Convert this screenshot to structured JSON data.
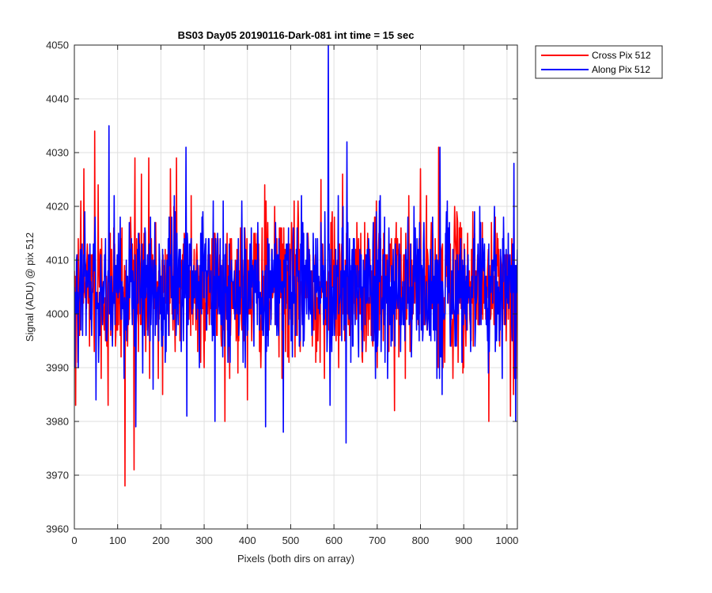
{
  "chart_data": {
    "type": "line",
    "title": "BS03 Day05 20190116-Dark-081 int time = 15 sec",
    "xlabel": "Pixels (both dirs on array)",
    "ylabel": "Signal (ADU) @ pix 512",
    "xlim": [
      0,
      1024
    ],
    "ylim": [
      3960,
      4050
    ],
    "xticks": [
      0,
      100,
      200,
      300,
      400,
      500,
      600,
      700,
      800,
      900,
      1000
    ],
    "yticks": [
      3960,
      3970,
      3980,
      3990,
      4000,
      4010,
      4020,
      4030,
      4040,
      4050
    ],
    "xtick_labels": [
      "0",
      "100",
      "200",
      "300",
      "400",
      "500",
      "600",
      "700",
      "800",
      "900",
      "1000"
    ],
    "ytick_labels": [
      "3960",
      "3970",
      "3980",
      "3990",
      "4000",
      "4010",
      "4020",
      "4030",
      "4040",
      "4050"
    ],
    "grid": true,
    "legend_position": "outside-top-right",
    "series_note": "noise traces of 1024 samples each; mean ~4005 ADU, std ~7 ADU",
    "series": [
      {
        "name": "Cross Pix 512",
        "color": "#ff0000",
        "mean": 4005,
        "std": 7,
        "n": 1024,
        "extremes": [
          {
            "x": 0,
            "y": 4008
          },
          {
            "x": 3,
            "y": 3983
          },
          {
            "x": 8,
            "y": 3991
          },
          {
            "x": 15,
            "y": 4021
          },
          {
            "x": 22,
            "y": 4027
          },
          {
            "x": 47,
            "y": 4034
          },
          {
            "x": 55,
            "y": 4024
          },
          {
            "x": 62,
            "y": 3988
          },
          {
            "x": 78,
            "y": 3983
          },
          {
            "x": 110,
            "y": 4016
          },
          {
            "x": 117,
            "y": 3968
          },
          {
            "x": 130,
            "y": 4018
          },
          {
            "x": 138,
            "y": 3971
          },
          {
            "x": 140,
            "y": 4029
          },
          {
            "x": 155,
            "y": 4026
          },
          {
            "x": 172,
            "y": 4029
          },
          {
            "x": 204,
            "y": 3985
          },
          {
            "x": 222,
            "y": 4027
          },
          {
            "x": 236,
            "y": 4029
          },
          {
            "x": 270,
            "y": 4022
          },
          {
            "x": 300,
            "y": 3990
          },
          {
            "x": 348,
            "y": 3980
          },
          {
            "x": 400,
            "y": 3984
          },
          {
            "x": 440,
            "y": 4024
          },
          {
            "x": 510,
            "y": 3992
          },
          {
            "x": 570,
            "y": 4025
          },
          {
            "x": 620,
            "y": 4026
          },
          {
            "x": 700,
            "y": 3990
          },
          {
            "x": 740,
            "y": 3982
          },
          {
            "x": 800,
            "y": 4027
          },
          {
            "x": 842,
            "y": 4031
          },
          {
            "x": 900,
            "y": 3990
          },
          {
            "x": 958,
            "y": 3980
          },
          {
            "x": 1008,
            "y": 3981
          },
          {
            "x": 1015,
            "y": 3985
          },
          {
            "x": 1024,
            "y": 4002
          }
        ]
      },
      {
        "name": "Along Pix 512",
        "color": "#0000ff",
        "mean": 4005,
        "std": 7,
        "n": 1024,
        "extremes": [
          {
            "x": 0,
            "y": 4005
          },
          {
            "x": 50,
            "y": 3984
          },
          {
            "x": 80,
            "y": 4035
          },
          {
            "x": 142,
            "y": 3979
          },
          {
            "x": 182,
            "y": 3986
          },
          {
            "x": 258,
            "y": 4031
          },
          {
            "x": 260,
            "y": 3981
          },
          {
            "x": 325,
            "y": 3980
          },
          {
            "x": 442,
            "y": 3979
          },
          {
            "x": 483,
            "y": 3978
          },
          {
            "x": 587,
            "y": 4050
          },
          {
            "x": 591,
            "y": 3983
          },
          {
            "x": 628,
            "y": 3976
          },
          {
            "x": 630,
            "y": 4032
          },
          {
            "x": 845,
            "y": 4031
          },
          {
            "x": 850,
            "y": 3985
          },
          {
            "x": 1016,
            "y": 4028
          },
          {
            "x": 1020,
            "y": 3980
          },
          {
            "x": 1024,
            "y": 4012
          }
        ]
      }
    ]
  }
}
